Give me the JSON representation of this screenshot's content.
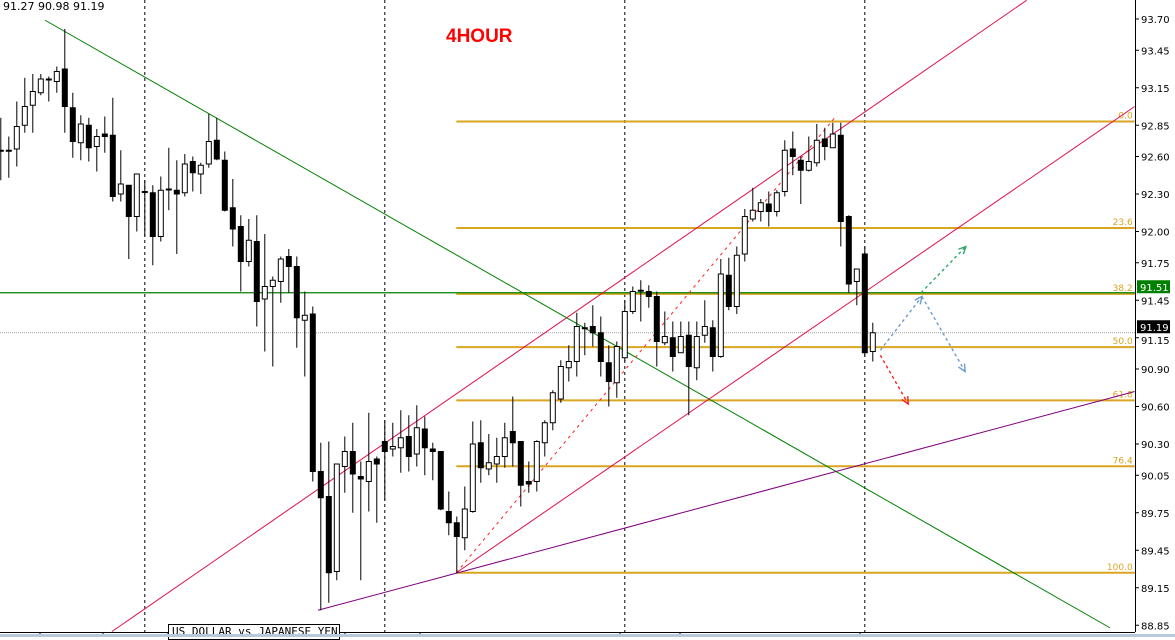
{
  "header": {
    "ohlc_text": "91.27 90.98 91.19",
    "timeframe_label": "4HOUR",
    "symbol_label": "US DOLLAR vs JAPANESE YEN"
  },
  "colors": {
    "trend_green": "#008000",
    "channel_red": "#e0104a",
    "fib_orange": "#daa520",
    "purple": "#800080",
    "arrow_blue": "#6a9bd1",
    "arrow_green": "#2ea86a",
    "arrow_red": "#ff2020",
    "current_price_bg": "#000000",
    "level_bg": "#008000"
  },
  "chart_data": {
    "type": "candlestick",
    "title": "4HOUR",
    "ylim": [
      88.8,
      93.85
    ],
    "y_ticks": [
      "93.70",
      "93.45",
      "93.15",
      "92.85",
      "92.60",
      "92.30",
      "92.00",
      "91.75",
      "91.45",
      "91.15",
      "90.90",
      "90.60",
      "90.30",
      "90.05",
      "89.75",
      "89.45",
      "89.15",
      "88.85"
    ],
    "candles_ohlc": [
      [
        92.65,
        92.91,
        92.41,
        92.65
      ],
      [
        92.65,
        92.76,
        92.43,
        92.65
      ],
      [
        92.66,
        93.04,
        92.52,
        92.84
      ],
      [
        92.85,
        93.23,
        92.79,
        93.0
      ],
      [
        93.01,
        93.26,
        92.79,
        93.12
      ],
      [
        93.11,
        93.26,
        93.09,
        93.22
      ],
      [
        93.22,
        93.24,
        93.04,
        93.22
      ],
      [
        93.2,
        93.32,
        93.11,
        93.28
      ],
      [
        93.3,
        93.62,
        92.79,
        93.0
      ],
      [
        92.99,
        93.11,
        92.59,
        92.72
      ],
      [
        92.71,
        92.93,
        92.57,
        92.86
      ],
      [
        92.85,
        92.91,
        92.56,
        92.67
      ],
      [
        92.68,
        92.82,
        92.48,
        92.76
      ],
      [
        92.78,
        92.92,
        92.63,
        92.76
      ],
      [
        92.77,
        93.07,
        92.24,
        92.28
      ],
      [
        92.3,
        92.65,
        92.24,
        92.38
      ],
      [
        92.37,
        92.37,
        91.78,
        92.12
      ],
      [
        92.12,
        92.46,
        92.0,
        92.46
      ],
      [
        92.32,
        92.41,
        91.96,
        92.32
      ],
      [
        92.31,
        92.37,
        91.73,
        91.96
      ],
      [
        91.96,
        92.44,
        91.92,
        92.33
      ],
      [
        92.34,
        92.67,
        92.17,
        92.34
      ],
      [
        92.33,
        92.57,
        91.82,
        92.3
      ],
      [
        92.31,
        92.62,
        92.28,
        92.54
      ],
      [
        92.56,
        92.6,
        92.32,
        92.47
      ],
      [
        92.46,
        92.55,
        92.3,
        92.53
      ],
      [
        92.54,
        92.94,
        92.51,
        92.72
      ],
      [
        92.73,
        92.91,
        92.57,
        92.58
      ],
      [
        92.57,
        92.64,
        92.16,
        92.17
      ],
      [
        92.19,
        92.42,
        91.88,
        92.02
      ],
      [
        92.04,
        92.13,
        91.52,
        91.76
      ],
      [
        91.76,
        92.1,
        91.72,
        91.93
      ],
      [
        91.92,
        92.13,
        91.24,
        91.44
      ],
      [
        91.46,
        91.98,
        91.04,
        91.56
      ],
      [
        91.56,
        91.64,
        90.92,
        91.61
      ],
      [
        91.6,
        91.8,
        91.43,
        91.78
      ],
      [
        91.8,
        91.86,
        91.51,
        91.72
      ],
      [
        91.72,
        91.8,
        91.07,
        91.31
      ],
      [
        91.29,
        91.52,
        90.84,
        91.33
      ],
      [
        91.34,
        91.4,
        90.0,
        90.08
      ],
      [
        90.08,
        90.31,
        88.97,
        89.87
      ],
      [
        89.88,
        90.32,
        89.03,
        89.27
      ],
      [
        89.28,
        90.14,
        89.21,
        90.14
      ],
      [
        90.12,
        90.36,
        89.91,
        90.24
      ],
      [
        90.24,
        90.47,
        89.75,
        90.06
      ],
      [
        90.04,
        90.16,
        89.21,
        90.02
      ],
      [
        90.0,
        90.55,
        89.76,
        90.16
      ],
      [
        90.18,
        90.2,
        89.67,
        90.14
      ],
      [
        90.32,
        90.49,
        89.85,
        90.24
      ],
      [
        90.26,
        90.47,
        90.2,
        90.28
      ],
      [
        90.27,
        90.57,
        90.07,
        90.35
      ],
      [
        90.36,
        90.53,
        90.08,
        90.2
      ],
      [
        90.22,
        90.61,
        90.12,
        90.43
      ],
      [
        90.42,
        90.52,
        90.05,
        90.27
      ],
      [
        90.26,
        90.31,
        90.01,
        90.24
      ],
      [
        90.24,
        90.24,
        89.77,
        89.78
      ],
      [
        89.76,
        89.92,
        89.57,
        89.67
      ],
      [
        89.67,
        89.72,
        89.27,
        89.56
      ],
      [
        89.55,
        89.96,
        89.45,
        89.78
      ],
      [
        89.76,
        90.48,
        89.75,
        90.3
      ],
      [
        90.31,
        90.49,
        89.99,
        90.11
      ],
      [
        90.1,
        90.38,
        90.05,
        90.15
      ],
      [
        90.14,
        90.35,
        89.99,
        90.2
      ],
      [
        90.2,
        90.47,
        90.11,
        90.35
      ],
      [
        90.4,
        90.68,
        90.12,
        90.31
      ],
      [
        90.32,
        90.32,
        89.8,
        89.97
      ],
      [
        90.0,
        90.16,
        89.91,
        89.98
      ],
      [
        90.0,
        90.33,
        89.92,
        90.32
      ],
      [
        90.31,
        90.49,
        90.2,
        90.47
      ],
      [
        90.47,
        90.73,
        90.41,
        90.71
      ],
      [
        90.66,
        90.97,
        90.63,
        90.92
      ],
      [
        90.91,
        91.09,
        90.8,
        90.96
      ],
      [
        90.96,
        91.35,
        90.84,
        91.24
      ],
      [
        91.23,
        91.27,
        91.01,
        91.23
      ],
      [
        91.24,
        91.41,
        91.08,
        91.19
      ],
      [
        91.19,
        91.32,
        90.84,
        90.96
      ],
      [
        90.95,
        91.09,
        90.6,
        90.8
      ],
      [
        90.79,
        91.12,
        90.67,
        91.08
      ],
      [
        90.99,
        91.45,
        90.96,
        91.36
      ],
      [
        91.36,
        91.56,
        91.34,
        91.52
      ],
      [
        91.53,
        91.61,
        91.28,
        91.53
      ],
      [
        91.52,
        91.57,
        91.39,
        91.48
      ],
      [
        91.48,
        91.52,
        90.92,
        91.12
      ],
      [
        91.11,
        91.36,
        91.09,
        91.16
      ],
      [
        91.15,
        91.28,
        90.88,
        91.0
      ],
      [
        91.03,
        91.28,
        91.03,
        91.16
      ],
      [
        91.17,
        91.28,
        90.53,
        90.92
      ],
      [
        90.91,
        91.28,
        90.81,
        91.16
      ],
      [
        91.17,
        91.45,
        91.11,
        91.24
      ],
      [
        91.23,
        91.29,
        90.88,
        91.0
      ],
      [
        91.0,
        91.78,
        90.99,
        91.66
      ],
      [
        91.65,
        91.79,
        91.37,
        91.4
      ],
      [
        91.4,
        91.88,
        91.34,
        91.81
      ],
      [
        91.82,
        92.18,
        91.76,
        92.12
      ],
      [
        92.1,
        92.35,
        92.08,
        92.17
      ],
      [
        92.16,
        92.26,
        92.08,
        92.23
      ],
      [
        92.22,
        92.32,
        92.04,
        92.16
      ],
      [
        92.16,
        92.33,
        92.12,
        92.31
      ],
      [
        92.32,
        92.73,
        92.28,
        92.65
      ],
      [
        92.66,
        92.8,
        92.45,
        92.6
      ],
      [
        92.57,
        92.6,
        92.22,
        92.49
      ],
      [
        92.49,
        92.76,
        92.48,
        92.56
      ],
      [
        92.55,
        92.86,
        92.52,
        92.73
      ],
      [
        92.74,
        92.83,
        92.57,
        92.68
      ],
      [
        92.67,
        92.87,
        92.67,
        92.78
      ],
      [
        92.77,
        92.87,
        91.88,
        92.08
      ],
      [
        92.12,
        92.13,
        91.51,
        91.58
      ],
      [
        91.6,
        91.7,
        91.41,
        91.7
      ],
      [
        91.82,
        91.88,
        91.0,
        91.03
      ],
      [
        91.04,
        91.27,
        90.96,
        91.19
      ]
    ],
    "period_separators_bar": [
      18,
      48,
      78,
      108
    ],
    "horizontal_level": {
      "price": 91.51,
      "label": "91.51"
    },
    "current_price": {
      "price": 91.19,
      "label": "91.19"
    },
    "fibonacci": {
      "start_bar": 57,
      "end_bar": 141.8,
      "high": 92.88,
      "low": 89.27,
      "levels": [
        {
          "ratio": 0.0,
          "label": "0.0"
        },
        {
          "ratio": 0.236,
          "label": "23.6"
        },
        {
          "ratio": 0.382,
          "label": "38.2"
        },
        {
          "ratio": 0.5,
          "label": "50.0"
        },
        {
          "ratio": 0.618,
          "label": "61.8"
        },
        {
          "ratio": 0.764,
          "label": "76.4"
        },
        {
          "ratio": 1.0,
          "label": "100.0"
        }
      ]
    },
    "trendlines": [
      {
        "kind": "downtrend",
        "color": "#008000",
        "dashed": false,
        "from": [
          5.6,
          93.69
        ],
        "to": [
          138.7,
          88.83
        ]
      },
      {
        "kind": "channel-upper",
        "color": "#e0104a",
        "dashed": false,
        "from": [
          13.96,
          88.8
        ],
        "to": [
          128.3,
          93.85
        ]
      },
      {
        "kind": "channel-lower",
        "color": "#e0104a",
        "dashed": false,
        "from": [
          57,
          89.27
        ],
        "to": [
          141.8,
          93.0
        ]
      },
      {
        "kind": "channel-mid",
        "color": "#ff2020",
        "dashed": true,
        "from": [
          57,
          89.27
        ],
        "to": [
          104.3,
          92.91
        ]
      },
      {
        "kind": "support",
        "color": "#800080",
        "dashed": false,
        "from": [
          39.7,
          88.97
        ],
        "to": [
          141.8,
          90.72
        ]
      }
    ],
    "arrows": [
      {
        "color": "#6a9bd1",
        "from": [
          110,
          91.05
        ],
        "to": [
          115.2,
          91.48
        ]
      },
      {
        "color": "#6a9bd1",
        "from": [
          115.2,
          91.48
        ],
        "to": [
          120.6,
          90.88
        ]
      },
      {
        "color": "#2ea86a",
        "from": [
          115.1,
          91.51
        ],
        "to": [
          120.7,
          91.88
        ]
      },
      {
        "color": "#ff2020",
        "from": [
          110,
          91.01
        ],
        "to": [
          113.5,
          90.62
        ]
      }
    ]
  }
}
